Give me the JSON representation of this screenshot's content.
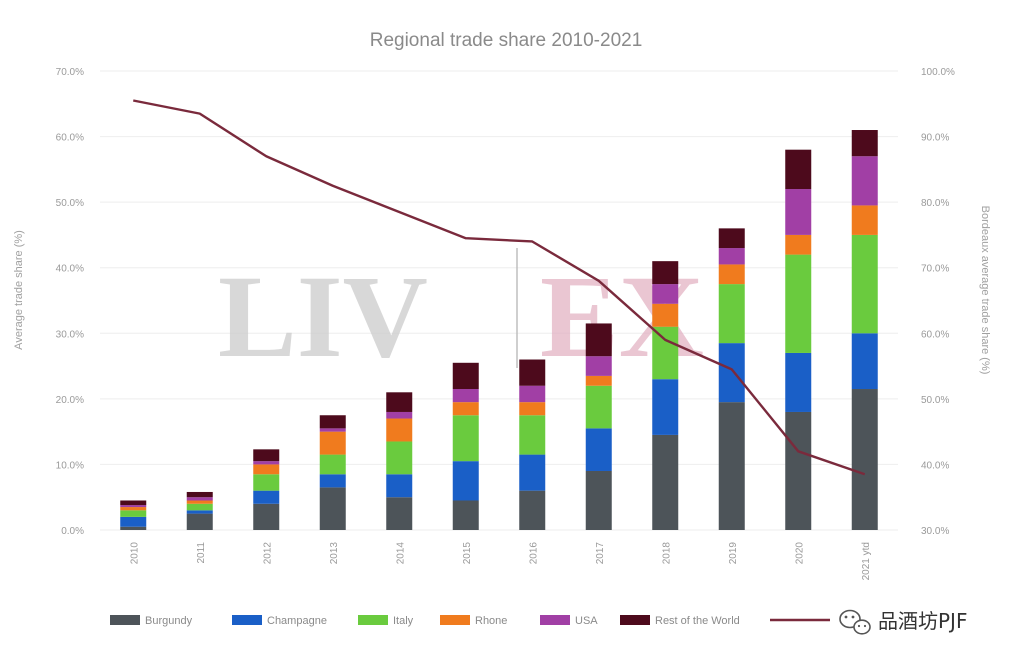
{
  "chart_data": {
    "type": "bar",
    "stacked": true,
    "title": "Regional trade share 2010-2021",
    "ylabel": "Average trade share (%)",
    "y2label": "Bordeaux average trade share (%)",
    "ylim": [
      0,
      70
    ],
    "y2lim": [
      30,
      100
    ],
    "yticks": [
      "0.0%",
      "10.0%",
      "20.0%",
      "30.0%",
      "40.0%",
      "50.0%",
      "60.0%",
      "70.0%"
    ],
    "y2ticks": [
      "30.0%",
      "40.0%",
      "50.0%",
      "60.0%",
      "70.0%",
      "80.0%",
      "90.0%",
      "100.0%"
    ],
    "categories": [
      "2010",
      "2011",
      "2012",
      "2013",
      "2014",
      "2015",
      "2016",
      "2017",
      "2018",
      "2019",
      "2020",
      "2021 ytd"
    ],
    "grid": true,
    "legend_position": "bottom",
    "series": [
      {
        "name": "Burgundy",
        "color": "#4d5459",
        "values": [
          0.5,
          2.5,
          4,
          6.5,
          5,
          4.5,
          6,
          9,
          14.5,
          19.5,
          18,
          21.5
        ]
      },
      {
        "name": "Champagne",
        "color": "#1a5fc7",
        "values": [
          1.5,
          0.5,
          2,
          2,
          3.5,
          6,
          5.5,
          6.5,
          8.5,
          9,
          9,
          8.5
        ]
      },
      {
        "name": "Italy",
        "color": "#6acb3e",
        "values": [
          1,
          1,
          2.5,
          3,
          5,
          7,
          6,
          6.5,
          8,
          9,
          15,
          15
        ]
      },
      {
        "name": "Rhone",
        "color": "#f07b1e",
        "values": [
          0.5,
          0.5,
          1.5,
          3.5,
          3.5,
          2,
          2,
          1.5,
          3.5,
          3,
          3,
          4.5
        ]
      },
      {
        "name": "USA",
        "color": "#a13fa5",
        "values": [
          0.3,
          0.5,
          0.5,
          0.5,
          1,
          2,
          2.5,
          3,
          3,
          2.5,
          7,
          7.5
        ]
      },
      {
        "name": "Rest of the World",
        "color": "#4d0a1c",
        "values": [
          0.7,
          0.8,
          1.8,
          2,
          3,
          4,
          4,
          5,
          3.5,
          3,
          6,
          4
        ]
      }
    ],
    "line": {
      "name": "Bordeaux",
      "axis": "right",
      "color": "#7a2a3c",
      "values": [
        95.5,
        93.5,
        87,
        82.5,
        78.5,
        74.5,
        74,
        68,
        59,
        54.5,
        42,
        38.5
      ]
    }
  },
  "watermark": {
    "left": "LIV",
    "right": "EX"
  },
  "wechat": {
    "account": "品酒坊PJF",
    "icon": "wechat-icon"
  }
}
